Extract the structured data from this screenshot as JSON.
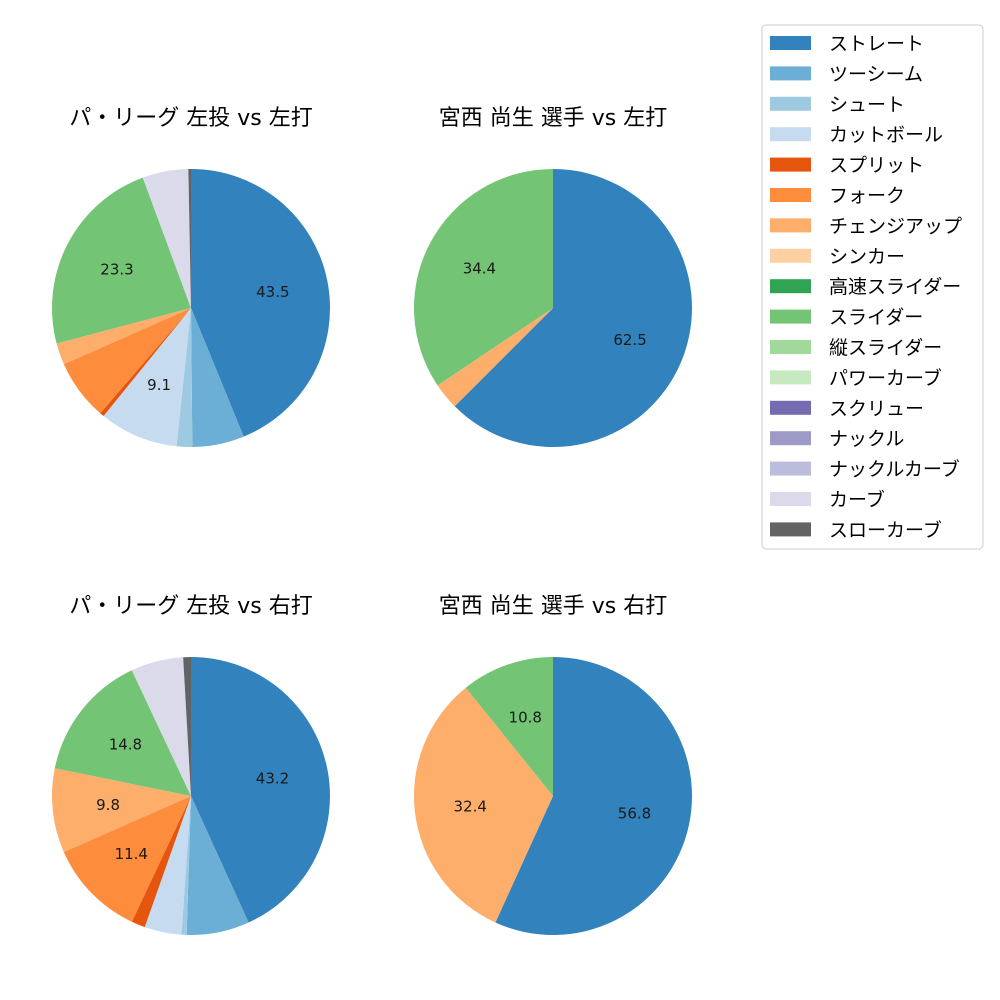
{
  "legend": {
    "items": [
      {
        "label": "ストレート",
        "color": "#3182bd"
      },
      {
        "label": "ツーシーム",
        "color": "#6baed6"
      },
      {
        "label": "シュート",
        "color": "#9ecae1"
      },
      {
        "label": "カットボール",
        "color": "#c6dbef"
      },
      {
        "label": "スプリット",
        "color": "#e6550d"
      },
      {
        "label": "フォーク",
        "color": "#fd8d3c"
      },
      {
        "label": "チェンジアップ",
        "color": "#fdae6b"
      },
      {
        "label": "シンカー",
        "color": "#fdd0a2"
      },
      {
        "label": "高速スライダー",
        "color": "#31a354"
      },
      {
        "label": "スライダー",
        "color": "#74c476"
      },
      {
        "label": "縦スライダー",
        "color": "#a1d99b"
      },
      {
        "label": "パワーカーブ",
        "color": "#c7e9c0"
      },
      {
        "label": "スクリュー",
        "color": "#756bb1"
      },
      {
        "label": "ナックル",
        "color": "#9e9ac8"
      },
      {
        "label": "ナックルカーブ",
        "color": "#bcbddc"
      },
      {
        "label": "カーブ",
        "color": "#dadaeb"
      },
      {
        "label": "スローカーブ",
        "color": "#636363"
      }
    ]
  },
  "chart_data": [
    {
      "type": "pie",
      "title": "パ・リーグ 左投 vs 左打",
      "slices": [
        {
          "pitch": "ストレート",
          "value": 43.5,
          "label": "43.5"
        },
        {
          "pitch": "ツーシーム",
          "value": 6.0,
          "label": ""
        },
        {
          "pitch": "シュート",
          "value": 1.8,
          "label": ""
        },
        {
          "pitch": "カットボール",
          "value": 9.1,
          "label": "9.1"
        },
        {
          "pitch": "スプリット",
          "value": 0.5,
          "label": ""
        },
        {
          "pitch": "フォーク",
          "value": 7.0,
          "label": ""
        },
        {
          "pitch": "チェンジアップ",
          "value": 2.5,
          "label": ""
        },
        {
          "pitch": "スライダー",
          "value": 23.3,
          "label": "23.3"
        },
        {
          "pitch": "カーブ",
          "value": 5.3,
          "label": ""
        },
        {
          "pitch": "スローカーブ",
          "value": 0.3,
          "label": ""
        }
      ]
    },
    {
      "type": "pie",
      "title": "宮西 尚生 選手 vs 左打",
      "slices": [
        {
          "pitch": "ストレート",
          "value": 62.5,
          "label": "62.5"
        },
        {
          "pitch": "チェンジアップ",
          "value": 3.1,
          "label": ""
        },
        {
          "pitch": "スライダー",
          "value": 34.4,
          "label": "34.4"
        }
      ]
    },
    {
      "type": "pie",
      "title": "パ・リーグ 左投 vs 右打",
      "slices": [
        {
          "pitch": "ストレート",
          "value": 43.2,
          "label": "43.2"
        },
        {
          "pitch": "ツーシーム",
          "value": 7.3,
          "label": ""
        },
        {
          "pitch": "シュート",
          "value": 0.6,
          "label": ""
        },
        {
          "pitch": "カットボール",
          "value": 4.3,
          "label": ""
        },
        {
          "pitch": "スプリット",
          "value": 1.6,
          "label": ""
        },
        {
          "pitch": "フォーク",
          "value": 11.4,
          "label": "11.4"
        },
        {
          "pitch": "チェンジアップ",
          "value": 9.8,
          "label": "9.8"
        },
        {
          "pitch": "スライダー",
          "value": 14.8,
          "label": "14.8"
        },
        {
          "pitch": "カーブ",
          "value": 6.1,
          "label": ""
        },
        {
          "pitch": "スローカーブ",
          "value": 0.9,
          "label": ""
        }
      ]
    },
    {
      "type": "pie",
      "title": "宮西 尚生 選手 vs 右打",
      "slices": [
        {
          "pitch": "ストレート",
          "value": 56.8,
          "label": "56.8"
        },
        {
          "pitch": "チェンジアップ",
          "value": 32.4,
          "label": "32.4"
        },
        {
          "pitch": "スライダー",
          "value": 10.8,
          "label": "10.8"
        }
      ]
    }
  ]
}
